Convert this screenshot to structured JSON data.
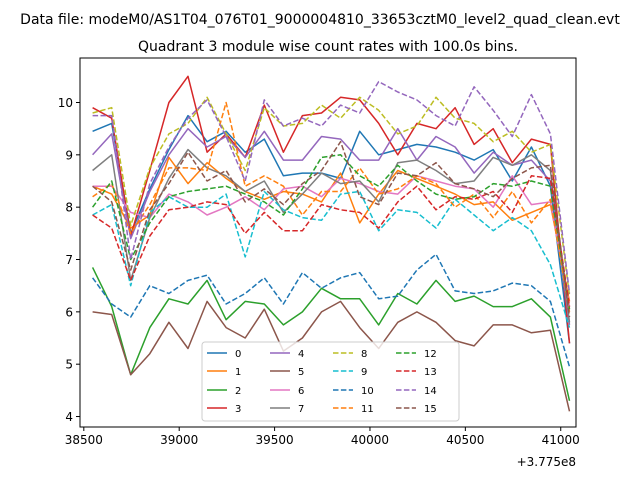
{
  "chart_data": {
    "type": "line",
    "suptitle": "Data file: modeM0/AS1T04_076T01_9000004810_33653cztM0_level2_quad_clean.evt",
    "title": "Quadrant 3 module wise count rates with 100.0s bins.",
    "xlabel": "",
    "ylabel": "",
    "x_offset_label": "+3.775e8",
    "xlim": [
      38480,
      41080
    ],
    "ylim": [
      3.8,
      10.85
    ],
    "xticks": [
      38500,
      39000,
      39500,
      40000,
      40500,
      41000
    ],
    "xtick_labels": [
      "38500",
      "39000",
      "39500",
      "40000",
      "40500",
      "41000"
    ],
    "yticks": [
      4,
      5,
      6,
      7,
      8,
      9,
      10
    ],
    "ytick_labels": [
      "4",
      "5",
      "6",
      "7",
      "8",
      "9",
      "10"
    ],
    "legend": {
      "placement": "lower-center",
      "ncol": 4
    },
    "x": [
      38546,
      38646,
      38746,
      38846,
      38946,
      39046,
      39146,
      39246,
      39346,
      39446,
      39546,
      39646,
      39746,
      39846,
      39946,
      40046,
      40146,
      40246,
      40346,
      40446,
      40546,
      40646,
      40746,
      40846,
      40946,
      41046
    ],
    "series": [
      {
        "name": "0",
        "color": "#1f77b4",
        "dash": "solid",
        "values": [
          9.45,
          9.6,
          7.5,
          8.35,
          9.1,
          9.75,
          9.25,
          9.45,
          9.05,
          9.3,
          8.6,
          8.65,
          8.65,
          8.55,
          9.45,
          9.0,
          9.1,
          9.2,
          9.15,
          9.05,
          8.9,
          9.1,
          8.5,
          9.15,
          8.4,
          5.4
        ]
      },
      {
        "name": "1",
        "color": "#ff7f0e",
        "dash": "solid",
        "values": [
          8.4,
          8.25,
          7.6,
          7.85,
          8.95,
          8.45,
          8.85,
          8.55,
          8.3,
          8.15,
          8.3,
          8.25,
          8.1,
          8.65,
          7.7,
          8.25,
          8.7,
          8.55,
          8.4,
          8.25,
          8.05,
          8.1,
          7.75,
          7.9,
          8.05,
          6.2
        ]
      },
      {
        "name": "2",
        "color": "#2ca02c",
        "dash": "solid",
        "values": [
          6.85,
          6.1,
          4.8,
          5.7,
          6.25,
          6.15,
          6.6,
          5.85,
          6.2,
          6.15,
          5.75,
          6.0,
          6.45,
          6.25,
          6.25,
          5.75,
          6.35,
          6.15,
          6.6,
          6.2,
          6.3,
          6.1,
          6.1,
          6.25,
          5.9,
          4.3
        ]
      },
      {
        "name": "3",
        "color": "#d62728",
        "dash": "solid",
        "values": [
          9.9,
          9.7,
          7.45,
          8.7,
          10.0,
          10.5,
          9.05,
          9.4,
          8.95,
          9.95,
          9.05,
          9.75,
          9.8,
          10.1,
          10.05,
          9.6,
          9.0,
          9.6,
          9.5,
          9.9,
          9.2,
          9.5,
          8.85,
          9.3,
          9.2,
          5.4
        ]
      },
      {
        "name": "4",
        "color": "#9467bd",
        "dash": "solid",
        "values": [
          9.0,
          9.4,
          7.4,
          8.3,
          9.0,
          9.5,
          9.15,
          9.35,
          8.95,
          9.45,
          8.9,
          8.9,
          9.35,
          9.3,
          8.9,
          8.9,
          9.5,
          8.9,
          9.35,
          9.15,
          8.65,
          9.05,
          8.8,
          8.9,
          8.5,
          5.75
        ]
      },
      {
        "name": "5",
        "color": "#8c564b",
        "dash": "solid",
        "values": [
          6.0,
          5.95,
          4.8,
          5.2,
          5.8,
          5.3,
          6.2,
          5.7,
          5.5,
          6.05,
          5.25,
          5.5,
          6.0,
          6.2,
          5.7,
          5.3,
          5.8,
          6.0,
          5.8,
          5.45,
          5.35,
          5.75,
          5.75,
          5.6,
          5.65,
          4.1
        ]
      },
      {
        "name": "6",
        "color": "#e377c2",
        "dash": "solid",
        "values": [
          8.4,
          8.4,
          7.9,
          7.8,
          8.25,
          8.1,
          7.85,
          8.0,
          8.2,
          7.95,
          8.35,
          8.4,
          8.2,
          8.55,
          8.45,
          8.3,
          8.25,
          8.6,
          8.5,
          8.4,
          8.35,
          8.0,
          8.6,
          8.05,
          8.1,
          6.1
        ]
      },
      {
        "name": "7",
        "color": "#7f7f7f",
        "dash": "solid",
        "values": [
          8.7,
          9.0,
          6.6,
          7.8,
          8.55,
          9.1,
          8.75,
          8.6,
          8.3,
          8.5,
          7.9,
          8.25,
          8.65,
          8.45,
          8.5,
          8.1,
          8.85,
          8.9,
          8.7,
          8.45,
          8.5,
          8.95,
          8.8,
          9.0,
          8.7,
          5.8
        ]
      },
      {
        "name": "8",
        "color": "#bcbd22",
        "dash": "dashed",
        "values": [
          9.8,
          9.9,
          7.65,
          8.75,
          9.4,
          9.6,
          10.1,
          9.4,
          8.7,
          9.9,
          9.55,
          9.6,
          9.95,
          9.7,
          10.1,
          9.85,
          9.4,
          9.55,
          10.1,
          9.7,
          9.6,
          9.25,
          9.45,
          9.05,
          9.2,
          6.3
        ]
      },
      {
        "name": "9",
        "color": "#17becf",
        "dash": "dashed",
        "values": [
          7.85,
          8.05,
          6.5,
          7.9,
          8.2,
          8.0,
          8.0,
          8.25,
          7.05,
          8.3,
          7.95,
          7.8,
          7.75,
          8.25,
          8.3,
          7.55,
          7.95,
          7.9,
          7.6,
          8.15,
          7.85,
          7.55,
          7.8,
          7.55,
          6.9,
          5.7
        ]
      },
      {
        "name": "10",
        "color": "#1f77b4",
        "dash": "dashed",
        "values": [
          6.65,
          6.15,
          5.9,
          6.5,
          6.35,
          6.6,
          6.7,
          6.15,
          6.35,
          6.65,
          6.15,
          6.75,
          6.45,
          6.65,
          6.75,
          6.25,
          6.3,
          6.8,
          7.1,
          6.4,
          6.35,
          6.4,
          6.55,
          6.5,
          6.2,
          4.95
        ]
      },
      {
        "name": "11",
        "color": "#ff7f0e",
        "dash": "dashed",
        "values": [
          8.2,
          8.45,
          7.5,
          8.05,
          8.75,
          8.75,
          8.7,
          10.0,
          8.4,
          8.6,
          8.4,
          7.85,
          8.3,
          8.3,
          8.75,
          8.25,
          8.35,
          8.6,
          8.45,
          8.0,
          8.25,
          7.8,
          8.3,
          7.7,
          8.15,
          6.0
        ]
      },
      {
        "name": "12",
        "color": "#2ca02c",
        "dash": "dashed",
        "values": [
          8.0,
          8.5,
          7.0,
          7.7,
          8.2,
          8.3,
          8.35,
          8.4,
          8.25,
          8.1,
          7.85,
          8.35,
          8.95,
          9.0,
          8.6,
          8.4,
          8.8,
          8.5,
          8.25,
          8.15,
          8.2,
          8.45,
          8.4,
          8.5,
          8.4,
          6.05
        ]
      },
      {
        "name": "13",
        "color": "#d62728",
        "dash": "dashed",
        "values": [
          7.85,
          7.6,
          6.6,
          7.45,
          7.95,
          8.0,
          8.1,
          8.05,
          7.5,
          7.9,
          7.55,
          7.55,
          8.05,
          7.95,
          7.9,
          7.6,
          8.1,
          8.4,
          7.95,
          8.2,
          8.15,
          8.3,
          7.9,
          8.6,
          8.55,
          6.1
        ]
      },
      {
        "name": "14",
        "color": "#9467bd",
        "dash": "dashed",
        "values": [
          9.75,
          9.75,
          7.0,
          8.45,
          9.15,
          9.7,
          10.05,
          9.35,
          8.5,
          10.05,
          9.55,
          9.7,
          9.55,
          9.95,
          9.8,
          10.4,
          10.2,
          10.05,
          9.75,
          9.55,
          10.3,
          9.85,
          9.35,
          10.15,
          9.4,
          6.35
        ]
      },
      {
        "name": "15",
        "color": "#8c564b",
        "dash": "dashed",
        "values": [
          8.4,
          8.1,
          6.8,
          7.95,
          8.45,
          9.05,
          8.5,
          8.7,
          8.1,
          8.35,
          8.05,
          8.45,
          8.7,
          9.25,
          8.2,
          8.05,
          8.65,
          8.6,
          8.85,
          8.45,
          8.35,
          8.2,
          8.55,
          8.75,
          8.8,
          5.9
        ]
      }
    ]
  }
}
